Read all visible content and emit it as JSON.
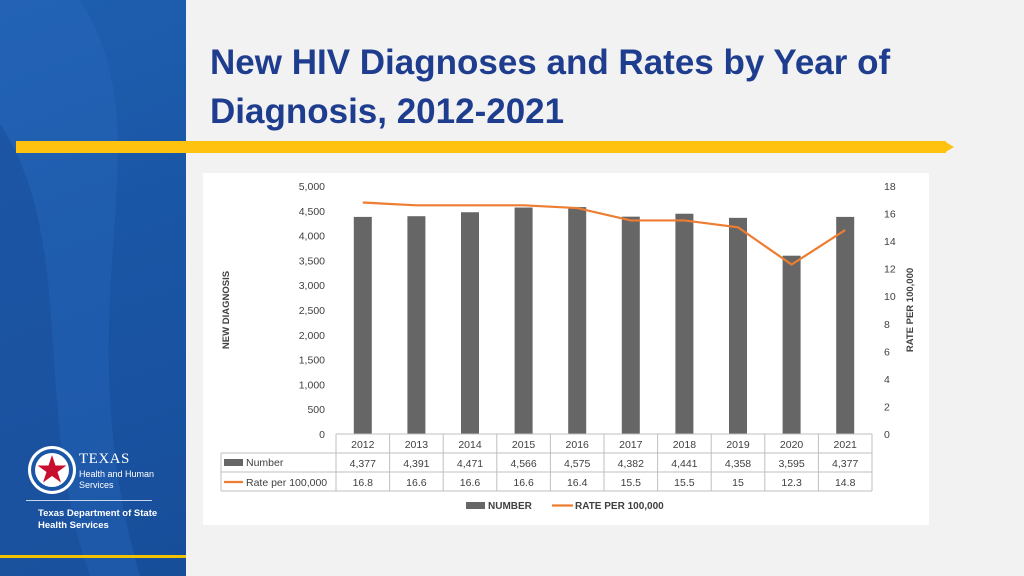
{
  "slide": {
    "title": "New HIV Diagnoses and Rates by Year of Diagnosis, 2012-2021"
  },
  "branding": {
    "logo_word": "TEXAS",
    "logo_sub": "Health and Human Services",
    "agency": "Texas Department of State Health Services"
  },
  "colors": {
    "sidebar_blue": "#1a56a6",
    "title_blue": "#1f3d8f",
    "accent_yellow": "#ffc20e",
    "bar_gray": "#666666",
    "line_orange": "#ed7d31"
  },
  "chart_data": {
    "type": "bar",
    "categories": [
      "2012",
      "2013",
      "2014",
      "2015",
      "2016",
      "2017",
      "2018",
      "2019",
      "2020",
      "2021"
    ],
    "series": [
      {
        "name": "Number",
        "type": "bar",
        "axis": "left",
        "values": [
          4377,
          4391,
          4471,
          4566,
          4575,
          4382,
          4441,
          4358,
          3595,
          4377
        ],
        "labels": [
          "4,377",
          "4,391",
          "4,471",
          "4,566",
          "4,575",
          "4,382",
          "4,441",
          "4,358",
          "3,595",
          "4,377"
        ]
      },
      {
        "name": "Rate per 100,000",
        "type": "line",
        "axis": "right",
        "values": [
          16.8,
          16.6,
          16.6,
          16.6,
          16.4,
          15.5,
          15.5,
          15,
          12.3,
          14.8
        ],
        "labels": [
          "16.8",
          "16.6",
          "16.6",
          "16.6",
          "16.4",
          "15.5",
          "15.5",
          "15",
          "12.3",
          "14.8"
        ]
      }
    ],
    "ylabel": "NEW DIAGNOSIS",
    "y2label": "RATE PER 100,000",
    "ylim": [
      0,
      5000
    ],
    "y2lim": [
      0,
      18
    ],
    "yticks": [
      "0",
      "500",
      "1,000",
      "1,500",
      "2,000",
      "2,500",
      "3,000",
      "3,500",
      "4,000",
      "4,500",
      "5,000"
    ],
    "y2ticks": [
      "0",
      "2",
      "4",
      "6",
      "8",
      "10",
      "12",
      "14",
      "16",
      "18"
    ],
    "legend": [
      "NUMBER",
      "RATE PER 100,000"
    ],
    "legend_position": "bottom",
    "grid": false,
    "data_table": true
  }
}
